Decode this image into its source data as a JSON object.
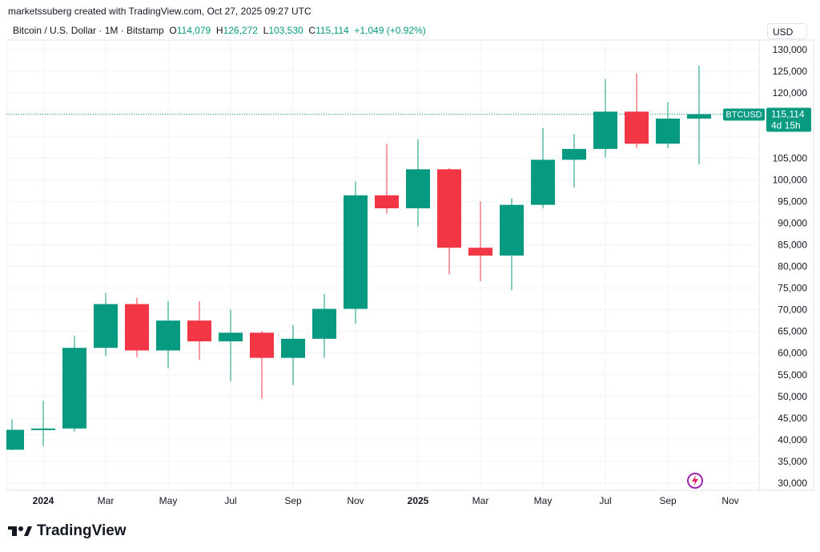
{
  "credit": "marketssuberg created with TradingView.com, Oct 27, 2025 09:27 UTC",
  "legend": {
    "symbol": "Bitcoin / U.S. Dollar · 1M · Bitstamp",
    "o_label": "O",
    "o": "114,079",
    "h_label": "H",
    "h": "126,272",
    "l_label": "L",
    "l": "103,530",
    "c_label": "C",
    "c": "115,114",
    "change": "+1,049 (+0.92%)"
  },
  "currency": "USD",
  "price_tag": {
    "symbol": "BTCUSD",
    "price": "115,114",
    "countdown": "4d 15h"
  },
  "brand": "TradingView",
  "colors": {
    "up": "#089981",
    "down": "#f23645",
    "grid": "#f0f3fa"
  },
  "chart_data": {
    "type": "candlestick",
    "ylim": [
      28000,
      131000
    ],
    "y_ticks": [
      30000,
      35000,
      40000,
      45000,
      50000,
      55000,
      60000,
      65000,
      70000,
      75000,
      80000,
      85000,
      90000,
      95000,
      100000,
      105000,
      110000,
      115000,
      120000,
      125000,
      130000
    ],
    "x_ticks": [
      {
        "month": 1,
        "label": "2024"
      },
      {
        "month": 3,
        "label": "Mar"
      },
      {
        "month": 5,
        "label": "May"
      },
      {
        "month": 7,
        "label": "Jul"
      },
      {
        "month": 9,
        "label": "Sep"
      },
      {
        "month": 11,
        "label": "Nov"
      },
      {
        "month": 13,
        "label": "2025"
      },
      {
        "month": 15,
        "label": "Mar"
      },
      {
        "month": 17,
        "label": "May"
      },
      {
        "month": 19,
        "label": "Jul"
      },
      {
        "month": 21,
        "label": "Sep"
      },
      {
        "month": 23,
        "label": "Nov"
      }
    ],
    "candles": [
      {
        "date": "2023-12",
        "o": 37700,
        "h": 44700,
        "l": 37600,
        "c": 42300
      },
      {
        "date": "2024-01",
        "o": 42300,
        "h": 49000,
        "l": 38500,
        "c": 42600
      },
      {
        "date": "2024-02",
        "o": 42600,
        "h": 64000,
        "l": 41900,
        "c": 61200
      },
      {
        "date": "2024-03",
        "o": 61200,
        "h": 73800,
        "l": 59300,
        "c": 71300
      },
      {
        "date": "2024-04",
        "o": 71300,
        "h": 72800,
        "l": 59100,
        "c": 60600
      },
      {
        "date": "2024-05",
        "o": 60600,
        "h": 72000,
        "l": 56500,
        "c": 67500
      },
      {
        "date": "2024-06",
        "o": 67500,
        "h": 72000,
        "l": 58500,
        "c": 62700
      },
      {
        "date": "2024-07",
        "o": 62700,
        "h": 70000,
        "l": 53500,
        "c": 64700
      },
      {
        "date": "2024-08",
        "o": 64700,
        "h": 65100,
        "l": 49500,
        "c": 58900
      },
      {
        "date": "2024-09",
        "o": 58900,
        "h": 66500,
        "l": 52600,
        "c": 63300
      },
      {
        "date": "2024-10",
        "o": 63300,
        "h": 73600,
        "l": 58900,
        "c": 70200
      },
      {
        "date": "2024-11",
        "o": 70200,
        "h": 99600,
        "l": 66800,
        "c": 96400
      },
      {
        "date": "2024-12",
        "o": 96400,
        "h": 108300,
        "l": 92200,
        "c": 93400
      },
      {
        "date": "2025-01",
        "o": 93400,
        "h": 109300,
        "l": 89200,
        "c": 102400
      },
      {
        "date": "2025-02",
        "o": 102400,
        "h": 102700,
        "l": 78200,
        "c": 84300
      },
      {
        "date": "2025-03",
        "o": 84300,
        "h": 95000,
        "l": 76600,
        "c": 82500
      },
      {
        "date": "2025-04",
        "o": 82500,
        "h": 95700,
        "l": 74500,
        "c": 94200
      },
      {
        "date": "2025-05",
        "o": 94200,
        "h": 111900,
        "l": 93400,
        "c": 104600
      },
      {
        "date": "2025-06",
        "o": 104600,
        "h": 110500,
        "l": 98200,
        "c": 107100
      },
      {
        "date": "2025-07",
        "o": 107100,
        "h": 123200,
        "l": 105100,
        "c": 115700
      },
      {
        "date": "2025-08",
        "o": 115700,
        "h": 124500,
        "l": 107300,
        "c": 108300
      },
      {
        "date": "2025-09",
        "o": 108300,
        "h": 117900,
        "l": 107300,
        "c": 114100
      },
      {
        "date": "2025-10",
        "o": 114079,
        "h": 126272,
        "l": 103530,
        "c": 115114
      }
    ]
  }
}
